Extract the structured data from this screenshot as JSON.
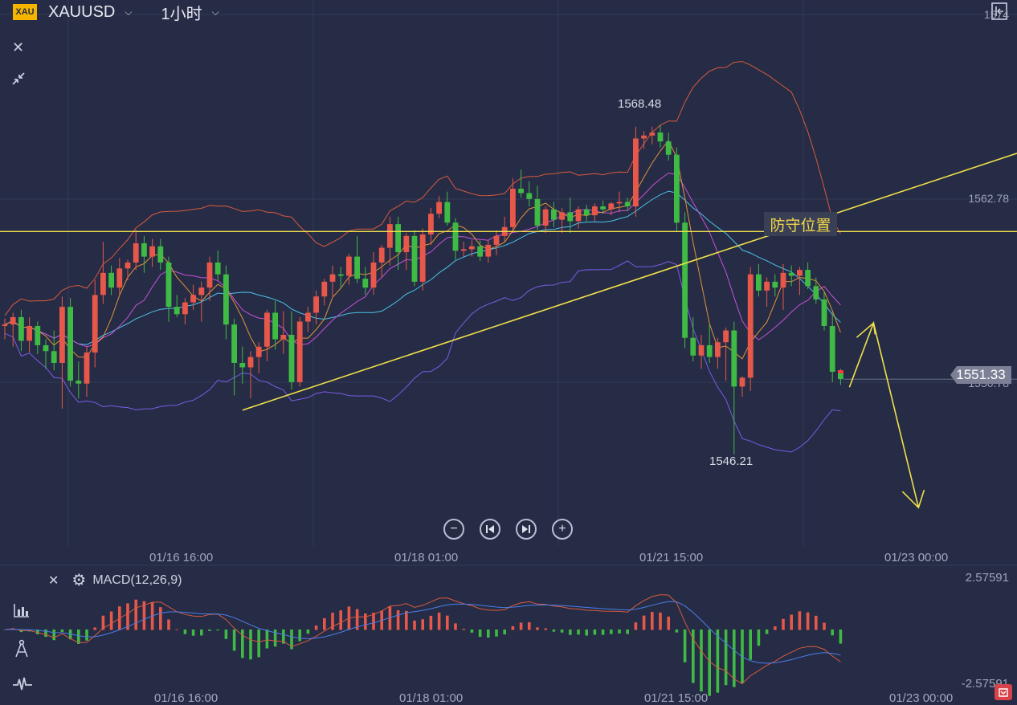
{
  "header": {
    "badge": "XAU",
    "symbol": "XAUUSD",
    "interval": "1小时",
    "dropdown_glyph": "⌵",
    "close_icon": "close-icon",
    "collapse_icon": "collapse-icon",
    "exit_icon": "exit-panel-icon"
  },
  "annotation": {
    "text": "防守位置"
  },
  "price": {
    "current": "1551.33",
    "high_label": "1568.48",
    "low_label": "1546.21"
  },
  "right_axis": {
    "top": "1574",
    "mid": "1562.78",
    "low": "1550.78"
  },
  "x_axis": {
    "labels": [
      "01/16 16:00",
      "01/18 01:00",
      "01/21 15:00",
      "01/23 00:00"
    ]
  },
  "controls": {
    "zoom_out": "−",
    "prev": "⏮",
    "next": "⏭",
    "zoom_in": "+"
  },
  "macd": {
    "title": "MACD(12,26,9)",
    "upper": "2.57591",
    "lower": "-2.57591",
    "close_glyph": "✕",
    "settings_glyph": "⚙"
  },
  "tools": [
    "bar-chart-icon",
    "compass-icon",
    "pulse-icon"
  ],
  "colors": {
    "up": "#e8584a",
    "down": "#3fbb45",
    "background": "#262c45",
    "annotation": "#f1e04a",
    "bb": "#d85a3f",
    "bbLower": "#7a5ce8",
    "ma1": "#e0933a",
    "ma2": "#c84fd9",
    "ma3": "#4cc2e6"
  },
  "chart_data": {
    "type": "candlestick",
    "symbol": "XAUUSD",
    "timeframe": "1小时",
    "ylim": [
      1540,
      1576
    ],
    "x_labels": [
      "01/16 16:00",
      "01/18 01:00",
      "01/21 15:00",
      "01/23 00:00"
    ],
    "candles": [
      [
        1554.9,
        1555.4,
        1554.0,
        1555.0
      ],
      [
        1555.0,
        1555.8,
        1553.5,
        1555.5
      ],
      [
        1555.5,
        1556.0,
        1553.2,
        1553.9
      ],
      [
        1553.9,
        1555.5,
        1553.1,
        1554.9
      ],
      [
        1554.9,
        1555.2,
        1553.0,
        1553.6
      ],
      [
        1553.6,
        1554.0,
        1552.0,
        1553.2
      ],
      [
        1553.2,
        1554.6,
        1551.9,
        1552.4
      ],
      [
        1552.4,
        1556.9,
        1549.3,
        1556.2
      ],
      [
        1556.2,
        1556.8,
        1550.8,
        1551.2
      ],
      [
        1551.2,
        1552.5,
        1550.0,
        1551.0
      ],
      [
        1551.0,
        1553.5,
        1550.1,
        1553.1
      ],
      [
        1553.1,
        1558.0,
        1552.1,
        1557.0
      ],
      [
        1557.0,
        1560.6,
        1556.4,
        1558.5
      ],
      [
        1558.5,
        1559.0,
        1557.0,
        1557.5
      ],
      [
        1557.5,
        1559.5,
        1557.0,
        1558.8
      ],
      [
        1558.8,
        1559.4,
        1558.0,
        1559.2
      ],
      [
        1559.2,
        1561.4,
        1558.7,
        1560.5
      ],
      [
        1560.5,
        1561.0,
        1558.5,
        1559.6
      ],
      [
        1559.6,
        1560.8,
        1558.9,
        1560.3
      ],
      [
        1560.3,
        1560.8,
        1558.7,
        1559.2
      ],
      [
        1559.2,
        1559.6,
        1555.2,
        1556.2
      ],
      [
        1556.2,
        1557.0,
        1555.5,
        1555.7
      ],
      [
        1555.7,
        1556.8,
        1555.0,
        1556.5
      ],
      [
        1556.5,
        1557.7,
        1556.0,
        1557.0
      ],
      [
        1557.0,
        1557.9,
        1555.2,
        1557.5
      ],
      [
        1557.5,
        1559.6,
        1556.6,
        1559.2
      ],
      [
        1559.2,
        1560.0,
        1558.0,
        1558.4
      ],
      [
        1558.4,
        1559.0,
        1554.0,
        1555.0
      ],
      [
        1555.0,
        1555.4,
        1550.2,
        1552.4
      ],
      [
        1552.4,
        1553.5,
        1551.0,
        1552.1
      ],
      [
        1552.1,
        1553.2,
        1550.0,
        1552.8
      ],
      [
        1552.8,
        1553.8,
        1551.7,
        1553.5
      ],
      [
        1553.5,
        1556.0,
        1552.5,
        1555.8
      ],
      [
        1555.8,
        1556.6,
        1553.3,
        1554.0
      ],
      [
        1554.0,
        1555.9,
        1553.0,
        1554.3
      ],
      [
        1554.3,
        1555.9,
        1550.6,
        1551.1
      ],
      [
        1551.1,
        1555.5,
        1550.8,
        1555.2
      ],
      [
        1555.2,
        1556.2,
        1554.5,
        1555.8
      ],
      [
        1555.8,
        1557.3,
        1555.0,
        1556.9
      ],
      [
        1556.9,
        1558.1,
        1556.3,
        1557.9
      ],
      [
        1557.9,
        1559.0,
        1556.8,
        1558.4
      ],
      [
        1558.4,
        1558.9,
        1557.5,
        1558.3
      ],
      [
        1558.3,
        1559.8,
        1557.7,
        1559.6
      ],
      [
        1559.6,
        1561.0,
        1557.8,
        1558.1
      ],
      [
        1558.1,
        1558.9,
        1557.0,
        1557.5
      ],
      [
        1557.5,
        1559.9,
        1557.0,
        1559.2
      ],
      [
        1559.2,
        1560.4,
        1558.2,
        1560.2
      ],
      [
        1560.2,
        1562.3,
        1559.0,
        1561.8
      ],
      [
        1561.8,
        1562.3,
        1558.7,
        1559.9
      ],
      [
        1559.9,
        1561.2,
        1558.7,
        1561.0
      ],
      [
        1561.0,
        1561.4,
        1557.6,
        1557.9
      ],
      [
        1557.9,
        1561.5,
        1557.3,
        1561.1
      ],
      [
        1561.1,
        1562.9,
        1560.4,
        1562.5
      ],
      [
        1562.5,
        1563.7,
        1562.2,
        1563.3
      ],
      [
        1563.3,
        1564.0,
        1561.7,
        1561.9
      ],
      [
        1561.9,
        1562.2,
        1559.4,
        1560.0
      ],
      [
        1560.0,
        1560.6,
        1559.6,
        1560.1
      ],
      [
        1560.1,
        1560.7,
        1559.6,
        1560.3
      ],
      [
        1560.3,
        1560.7,
        1559.3,
        1559.6
      ],
      [
        1559.6,
        1560.7,
        1559.2,
        1560.4
      ],
      [
        1560.4,
        1561.4,
        1559.7,
        1561.0
      ],
      [
        1561.0,
        1562.3,
        1560.6,
        1561.6
      ],
      [
        1561.6,
        1564.9,
        1561.3,
        1564.2
      ],
      [
        1564.2,
        1565.5,
        1563.6,
        1563.9
      ],
      [
        1563.9,
        1564.7,
        1563.0,
        1563.5
      ],
      [
        1563.5,
        1564.4,
        1561.4,
        1561.7
      ],
      [
        1561.7,
        1563.0,
        1561.2,
        1562.8
      ],
      [
        1562.8,
        1563.3,
        1561.6,
        1562.1
      ],
      [
        1562.1,
        1562.9,
        1561.2,
        1562.6
      ],
      [
        1562.6,
        1563.6,
        1561.2,
        1562.0
      ],
      [
        1562.0,
        1563.0,
        1561.5,
        1562.8
      ],
      [
        1562.8,
        1563.1,
        1562.0,
        1562.4
      ],
      [
        1562.4,
        1563.2,
        1562.0,
        1563.0
      ],
      [
        1563.0,
        1563.4,
        1562.5,
        1562.8
      ],
      [
        1562.8,
        1563.3,
        1562.4,
        1563.2
      ],
      [
        1563.2,
        1564.0,
        1562.6,
        1563.3
      ],
      [
        1563.3,
        1563.6,
        1562.7,
        1563.0
      ],
      [
        1563.0,
        1568.4,
        1562.3,
        1567.6
      ],
      [
        1567.6,
        1568.1,
        1566.9,
        1567.8
      ],
      [
        1567.8,
        1568.4,
        1567.2,
        1568.0
      ],
      [
        1568.0,
        1568.5,
        1567.0,
        1567.4
      ],
      [
        1567.4,
        1568.0,
        1566.1,
        1566.5
      ],
      [
        1566.5,
        1567.0,
        1561.3,
        1561.9
      ],
      [
        1561.9,
        1562.6,
        1553.4,
        1554.1
      ],
      [
        1554.1,
        1555.5,
        1552.5,
        1552.9
      ],
      [
        1552.9,
        1554.3,
        1552.0,
        1553.6
      ],
      [
        1553.6,
        1555.0,
        1552.4,
        1552.8
      ],
      [
        1552.8,
        1554.1,
        1552.0,
        1553.8
      ],
      [
        1553.8,
        1554.8,
        1551.2,
        1554.6
      ],
      [
        1554.6,
        1555.2,
        1546.2,
        1550.8
      ],
      [
        1550.8,
        1551.5,
        1550.1,
        1551.4
      ],
      [
        1551.4,
        1558.9,
        1550.5,
        1558.4
      ],
      [
        1558.4,
        1559.1,
        1556.9,
        1557.3
      ],
      [
        1557.3,
        1558.2,
        1556.2,
        1557.9
      ],
      [
        1557.9,
        1558.4,
        1556.9,
        1557.5
      ],
      [
        1557.5,
        1559.1,
        1556.0,
        1558.5
      ],
      [
        1558.5,
        1559.0,
        1557.6,
        1558.3
      ],
      [
        1558.3,
        1558.9,
        1557.0,
        1558.7
      ],
      [
        1558.7,
        1559.2,
        1557.4,
        1557.6
      ],
      [
        1557.6,
        1558.2,
        1556.4,
        1556.7
      ],
      [
        1556.7,
        1557.2,
        1554.6,
        1554.9
      ],
      [
        1554.9,
        1555.8,
        1551.1,
        1551.8
      ],
      [
        1551.8,
        1552.0,
        1550.9,
        1551.3
      ]
    ],
    "lines": [
      {
        "type": "trendline",
        "from": [
          "candle 30",
          1549.2
        ],
        "to": [
          "right edge",
          1566.6
        ]
      },
      {
        "type": "horizontal",
        "price": 1561.3
      }
    ],
    "annotations": [
      {
        "text": "防守位置",
        "price": 1562.5
      },
      {
        "text": "1568.48",
        "kind": "high"
      },
      {
        "text": "1546.21",
        "kind": "low"
      },
      {
        "text": "1551.33",
        "kind": "last-price"
      }
    ],
    "macd": {
      "params": "12,26,9",
      "range": [
        -2.57591,
        2.57591
      ]
    }
  }
}
